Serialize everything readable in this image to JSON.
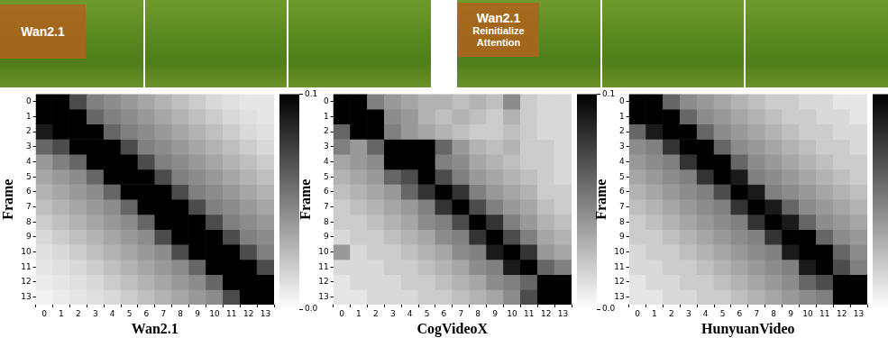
{
  "images": [
    {
      "label": [
        "Wan2.1"
      ]
    },
    {
      "label": [
        "Wan2.1",
        "Reinitialize",
        "Attention"
      ]
    }
  ],
  "chart_data": [
    {
      "type": "heatmap",
      "x_label": "Wan2.1",
      "y_label": "Frame",
      "x": [
        0,
        1,
        2,
        3,
        4,
        5,
        6,
        7,
        8,
        9,
        10,
        11,
        12,
        13
      ],
      "y": [
        0,
        1,
        2,
        3,
        4,
        5,
        6,
        7,
        8,
        9,
        10,
        11,
        12,
        13
      ],
      "ylim": [
        -0.5,
        13.5
      ],
      "yticks": [
        0,
        1,
        2,
        3,
        4,
        5,
        6,
        7,
        8,
        9,
        10,
        11,
        12,
        13
      ],
      "values": [
        [
          0.12,
          0.11,
          0.07,
          0.05,
          0.045,
          0.04,
          0.035,
          0.03,
          0.025,
          0.02,
          0.015,
          0.012,
          0.01,
          0.01
        ],
        [
          0.11,
          0.12,
          0.1,
          0.06,
          0.05,
          0.045,
          0.04,
          0.035,
          0.03,
          0.025,
          0.02,
          0.015,
          0.012,
          0.01
        ],
        [
          0.09,
          0.11,
          0.12,
          0.1,
          0.06,
          0.05,
          0.045,
          0.04,
          0.035,
          0.03,
          0.025,
          0.02,
          0.015,
          0.012
        ],
        [
          0.06,
          0.07,
          0.1,
          0.12,
          0.1,
          0.07,
          0.05,
          0.045,
          0.04,
          0.035,
          0.03,
          0.025,
          0.02,
          0.015
        ],
        [
          0.04,
          0.05,
          0.06,
          0.1,
          0.12,
          0.1,
          0.07,
          0.05,
          0.045,
          0.04,
          0.035,
          0.03,
          0.025,
          0.02
        ],
        [
          0.035,
          0.04,
          0.045,
          0.06,
          0.1,
          0.12,
          0.1,
          0.07,
          0.05,
          0.045,
          0.04,
          0.035,
          0.03,
          0.025
        ],
        [
          0.03,
          0.035,
          0.04,
          0.045,
          0.06,
          0.1,
          0.12,
          0.1,
          0.07,
          0.05,
          0.045,
          0.04,
          0.035,
          0.03
        ],
        [
          0.025,
          0.03,
          0.035,
          0.04,
          0.045,
          0.06,
          0.1,
          0.12,
          0.1,
          0.07,
          0.05,
          0.045,
          0.04,
          0.035
        ],
        [
          0.02,
          0.025,
          0.03,
          0.035,
          0.04,
          0.045,
          0.06,
          0.1,
          0.12,
          0.1,
          0.07,
          0.05,
          0.045,
          0.04
        ],
        [
          0.015,
          0.02,
          0.025,
          0.03,
          0.035,
          0.04,
          0.045,
          0.07,
          0.1,
          0.12,
          0.1,
          0.07,
          0.05,
          0.045
        ],
        [
          0.012,
          0.015,
          0.02,
          0.025,
          0.03,
          0.035,
          0.04,
          0.045,
          0.07,
          0.1,
          0.12,
          0.1,
          0.07,
          0.05
        ],
        [
          0.01,
          0.012,
          0.015,
          0.02,
          0.025,
          0.03,
          0.035,
          0.04,
          0.045,
          0.06,
          0.1,
          0.12,
          0.1,
          0.07
        ],
        [
          0.008,
          0.01,
          0.012,
          0.015,
          0.02,
          0.025,
          0.03,
          0.035,
          0.04,
          0.045,
          0.06,
          0.1,
          0.12,
          0.11
        ],
        [
          0.005,
          0.008,
          0.01,
          0.012,
          0.015,
          0.02,
          0.025,
          0.03,
          0.035,
          0.04,
          0.045,
          0.07,
          0.11,
          0.12
        ]
      ],
      "colorbar": {
        "range": [
          0,
          0.1
        ],
        "ticks": [
          {
            "value": 0,
            "label": "0.0"
          },
          0.1
        ]
      }
    },
    {
      "type": "heatmap",
      "x_label": "CogVideoX",
      "y_label": "Frame",
      "x": [
        0,
        1,
        2,
        3,
        4,
        5,
        6,
        7,
        8,
        9,
        10,
        11,
        12,
        13
      ],
      "y": [
        0,
        1,
        2,
        3,
        4,
        5,
        6,
        7,
        8,
        9,
        10,
        11,
        12,
        13
      ],
      "ylim": [
        -0.5,
        13.5
      ],
      "yticks": [
        0,
        1,
        2,
        3,
        4,
        5,
        6,
        7,
        8,
        9,
        10,
        11,
        12,
        13
      ],
      "values": [
        [
          0.12,
          0.1,
          0.05,
          0.04,
          0.035,
          0.03,
          0.03,
          0.025,
          0.03,
          0.025,
          0.045,
          0.02,
          0.015,
          0.015
        ],
        [
          0.1,
          0.12,
          0.1,
          0.045,
          0.04,
          0.03,
          0.025,
          0.03,
          0.025,
          0.02,
          0.03,
          0.02,
          0.015,
          0.015
        ],
        [
          0.06,
          0.1,
          0.12,
          0.05,
          0.04,
          0.035,
          0.03,
          0.025,
          0.02,
          0.02,
          0.025,
          0.02,
          0.015,
          0.015
        ],
        [
          0.05,
          0.04,
          0.06,
          0.12,
          0.1,
          0.1,
          0.06,
          0.04,
          0.03,
          0.025,
          0.03,
          0.02,
          0.02,
          0.015
        ],
        [
          0.035,
          0.04,
          0.045,
          0.1,
          0.12,
          0.1,
          0.05,
          0.045,
          0.035,
          0.03,
          0.025,
          0.02,
          0.02,
          0.015
        ],
        [
          0.03,
          0.035,
          0.04,
          0.06,
          0.07,
          0.12,
          0.07,
          0.05,
          0.04,
          0.035,
          0.03,
          0.025,
          0.02,
          0.015
        ],
        [
          0.025,
          0.03,
          0.035,
          0.04,
          0.06,
          0.08,
          0.12,
          0.08,
          0.05,
          0.04,
          0.035,
          0.03,
          0.02,
          0.02
        ],
        [
          0.02,
          0.025,
          0.03,
          0.035,
          0.04,
          0.05,
          0.08,
          0.12,
          0.07,
          0.05,
          0.04,
          0.035,
          0.025,
          0.02
        ],
        [
          0.02,
          0.02,
          0.025,
          0.03,
          0.035,
          0.045,
          0.05,
          0.07,
          0.12,
          0.08,
          0.05,
          0.04,
          0.03,
          0.025
        ],
        [
          0.015,
          0.02,
          0.02,
          0.025,
          0.03,
          0.035,
          0.045,
          0.05,
          0.08,
          0.12,
          0.07,
          0.05,
          0.035,
          0.03
        ],
        [
          0.04,
          0.015,
          0.02,
          0.02,
          0.025,
          0.03,
          0.035,
          0.045,
          0.05,
          0.09,
          0.12,
          0.08,
          0.04,
          0.035
        ],
        [
          0.015,
          0.015,
          0.015,
          0.02,
          0.02,
          0.025,
          0.03,
          0.035,
          0.045,
          0.05,
          0.09,
          0.12,
          0.06,
          0.05
        ],
        [
          0.01,
          0.015,
          0.015,
          0.015,
          0.02,
          0.02,
          0.025,
          0.03,
          0.035,
          0.045,
          0.05,
          0.06,
          0.12,
          0.12
        ],
        [
          0.01,
          0.01,
          0.015,
          0.015,
          0.015,
          0.02,
          0.02,
          0.025,
          0.03,
          0.035,
          0.045,
          0.07,
          0.12,
          0.12
        ]
      ],
      "colorbar": {
        "range": [
          0,
          0.1
        ],
        "ticks": [
          {
            "value": 0,
            "label": "0.0"
          },
          0.1
        ]
      }
    },
    {
      "type": "heatmap",
      "x_label": "HunyuanVideo",
      "y_label": "Frame",
      "x": [
        0,
        1,
        2,
        3,
        4,
        5,
        6,
        7,
        8,
        9,
        10,
        11,
        12,
        13
      ],
      "y": [
        0,
        1,
        2,
        3,
        4,
        5,
        6,
        7,
        8,
        9,
        10,
        11,
        12,
        13
      ],
      "ylim": [
        -0.5,
        13.5
      ],
      "yticks": [
        0,
        1,
        2,
        3,
        4,
        5,
        6,
        7,
        8,
        9,
        10,
        11,
        12,
        13
      ],
      "values": [
        [
          0.12,
          0.1,
          0.06,
          0.045,
          0.04,
          0.035,
          0.03,
          0.025,
          0.02,
          0.02,
          0.015,
          0.015,
          0.01,
          0.01
        ],
        [
          0.1,
          0.12,
          0.1,
          0.06,
          0.045,
          0.04,
          0.035,
          0.03,
          0.025,
          0.02,
          0.02,
          0.015,
          0.015,
          0.01
        ],
        [
          0.06,
          0.09,
          0.12,
          0.1,
          0.06,
          0.045,
          0.04,
          0.035,
          0.03,
          0.025,
          0.02,
          0.02,
          0.015,
          0.015
        ],
        [
          0.045,
          0.05,
          0.08,
          0.12,
          0.1,
          0.06,
          0.045,
          0.04,
          0.035,
          0.03,
          0.025,
          0.02,
          0.02,
          0.015
        ],
        [
          0.04,
          0.045,
          0.05,
          0.08,
          0.12,
          0.1,
          0.06,
          0.045,
          0.04,
          0.035,
          0.03,
          0.025,
          0.02,
          0.02
        ],
        [
          0.035,
          0.04,
          0.045,
          0.05,
          0.08,
          0.12,
          0.09,
          0.05,
          0.045,
          0.04,
          0.035,
          0.03,
          0.025,
          0.02
        ],
        [
          0.03,
          0.035,
          0.04,
          0.045,
          0.05,
          0.07,
          0.12,
          0.09,
          0.05,
          0.045,
          0.04,
          0.035,
          0.03,
          0.025
        ],
        [
          0.025,
          0.03,
          0.035,
          0.04,
          0.045,
          0.05,
          0.08,
          0.12,
          0.09,
          0.06,
          0.045,
          0.04,
          0.035,
          0.03
        ],
        [
          0.02,
          0.025,
          0.03,
          0.035,
          0.04,
          0.045,
          0.05,
          0.08,
          0.12,
          0.09,
          0.06,
          0.045,
          0.04,
          0.035
        ],
        [
          0.02,
          0.02,
          0.025,
          0.03,
          0.035,
          0.04,
          0.045,
          0.05,
          0.08,
          0.12,
          0.1,
          0.06,
          0.045,
          0.04
        ],
        [
          0.015,
          0.02,
          0.02,
          0.025,
          0.03,
          0.035,
          0.04,
          0.045,
          0.05,
          0.09,
          0.12,
          0.1,
          0.06,
          0.045
        ],
        [
          0.015,
          0.015,
          0.02,
          0.02,
          0.025,
          0.03,
          0.035,
          0.04,
          0.045,
          0.05,
          0.09,
          0.12,
          0.07,
          0.05
        ],
        [
          0.01,
          0.015,
          0.015,
          0.02,
          0.02,
          0.025,
          0.03,
          0.035,
          0.04,
          0.045,
          0.06,
          0.07,
          0.12,
          0.12
        ],
        [
          0.01,
          0.01,
          0.015,
          0.015,
          0.02,
          0.02,
          0.025,
          0.03,
          0.035,
          0.04,
          0.045,
          0.05,
          0.12,
          0.12
        ]
      ],
      "colorbar": {
        "range": [
          0,
          0.1
        ],
        "ticks": [
          {
            "value": 0,
            "label": "0.0"
          },
          0.1
        ]
      }
    }
  ]
}
